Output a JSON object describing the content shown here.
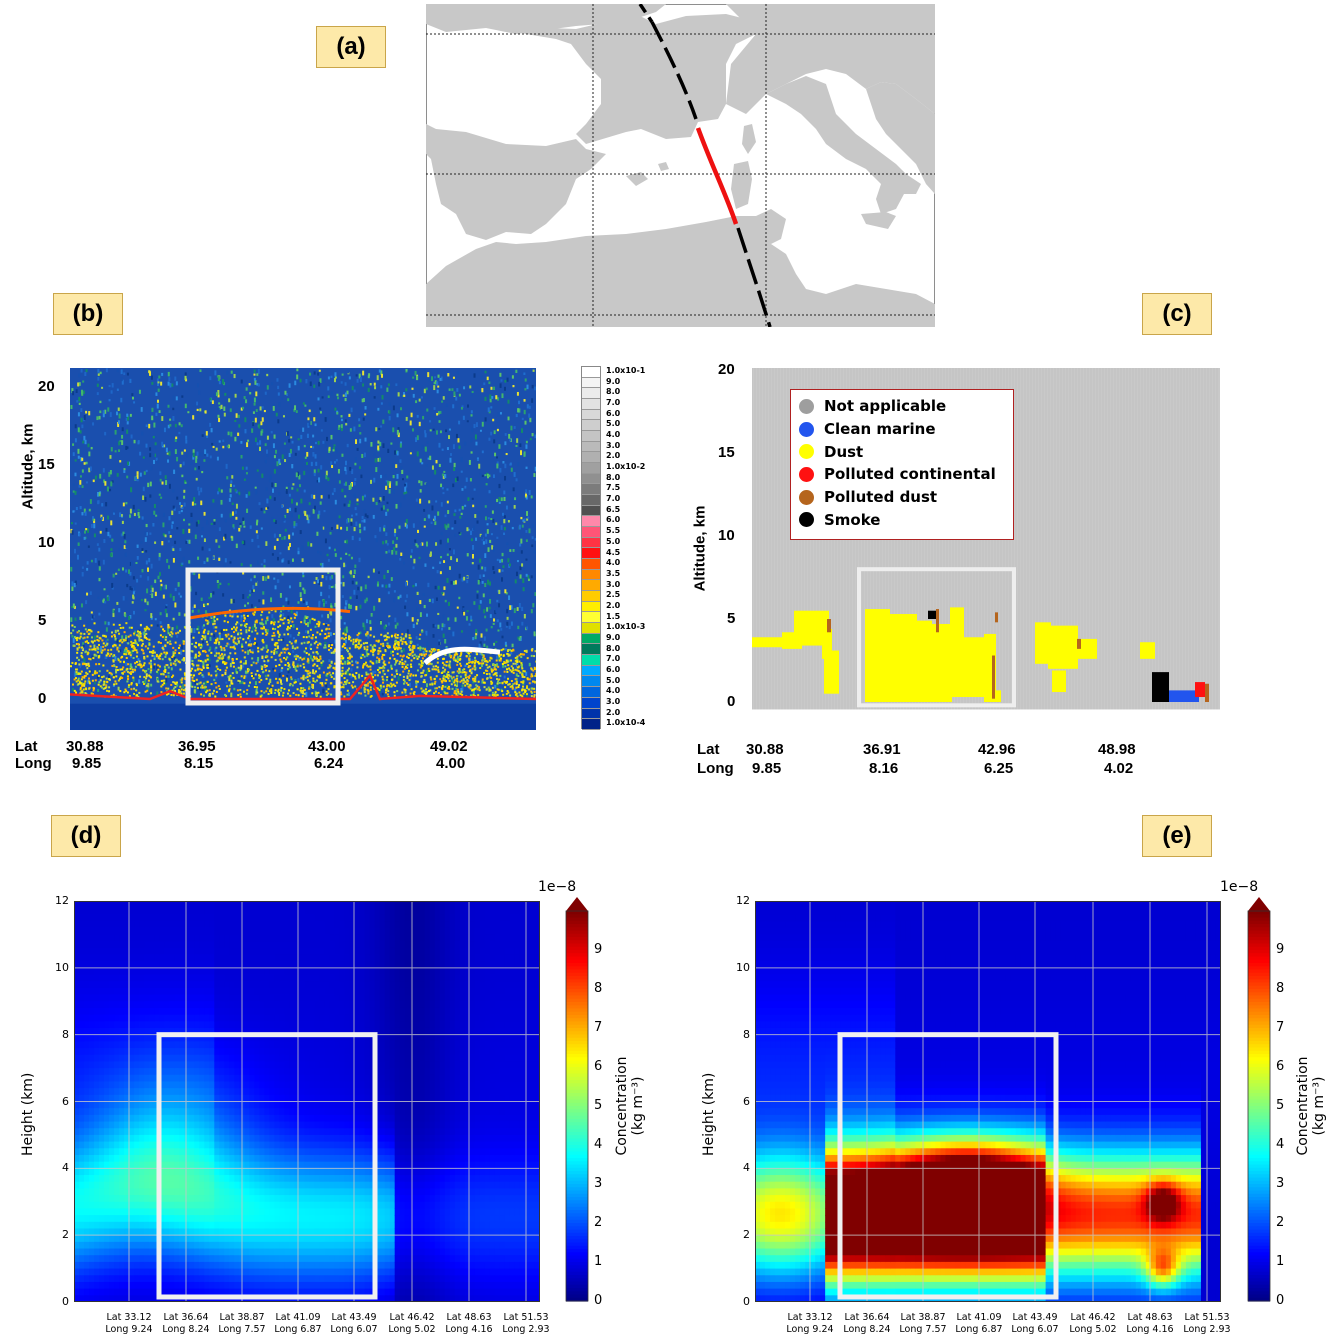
{
  "panels": {
    "a": "(a)",
    "b": "(b)",
    "c": "(c)",
    "d": "(d)",
    "e": "(e)"
  },
  "colors": {
    "label_bg": "#fde9a9",
    "land": "#c8c8c8",
    "track_black": "#000000",
    "track_red": "#ee1111",
    "box": "#f0f0f0",
    "legend_border": "#b02020"
  },
  "panel_b": {
    "ylabel": "Altitude, km",
    "yticks": [
      "20",
      "15",
      "10",
      "5",
      "0"
    ],
    "lat_label": "Lat",
    "long_label": "Long",
    "lats": [
      "30.88",
      "36.95",
      "43.00",
      "49.02"
    ],
    "longs": [
      "9.85",
      "8.15",
      "6.24",
      "4.00"
    ],
    "colorbar_labels": [
      "1.0x10-1",
      "9.0",
      "8.0",
      "7.0",
      "6.0",
      "5.0",
      "4.0",
      "3.0",
      "2.0",
      "1.0x10-2",
      "8.0",
      "7.5",
      "7.0",
      "6.5",
      "6.0",
      "5.5",
      "5.0",
      "4.5",
      "4.0",
      "3.5",
      "3.0",
      "2.5",
      "2.0",
      "1.5",
      "1.0x10-3",
      "9.0",
      "8.0",
      "7.0",
      "6.0",
      "5.0",
      "4.0",
      "3.0",
      "2.0",
      "1.0x10-4"
    ],
    "colorbar_colors": [
      "#ffffff",
      "#f4f4f4",
      "#ebebeb",
      "#e2e2e2",
      "#d8d8d8",
      "#cecece",
      "#c4c4c4",
      "#bababa",
      "#b0b0b0",
      "#a0a0a0",
      "#909090",
      "#7c7c7c",
      "#686868",
      "#505050",
      "#ff88aa",
      "#ff5577",
      "#ff3344",
      "#ff1111",
      "#ff5500",
      "#ff8800",
      "#ffaa00",
      "#ffcc00",
      "#ffee00",
      "#ffff33",
      "#e0e000",
      "#00aa66",
      "#007a5c",
      "#00ddaa",
      "#00aaff",
      "#0088ee",
      "#0066dd",
      "#0044cc",
      "#0033aa",
      "#002288"
    ]
  },
  "panel_c": {
    "ylabel": "Altitude, km",
    "yticks": [
      "20",
      "15",
      "10",
      "5",
      "0"
    ],
    "lat_label": "Lat",
    "long_label": "Long",
    "lats": [
      "30.88",
      "36.91",
      "42.96",
      "48.98"
    ],
    "longs": [
      "9.85",
      "8.16",
      "6.25",
      "4.02"
    ],
    "legend": [
      {
        "label": "Not applicable",
        "color": "#9e9e9e"
      },
      {
        "label": "Clean marine",
        "color": "#2255ee"
      },
      {
        "label": "Dust",
        "color": "#ffff00"
      },
      {
        "label": "Polluted continental",
        "color": "#ff1111"
      },
      {
        "label": "Polluted dust",
        "color": "#b5651d"
      },
      {
        "label": "Smoke",
        "color": "#000000"
      }
    ]
  },
  "panel_d": {
    "ylabel": "Height (km)",
    "yticks": [
      "12",
      "10",
      "8",
      "6",
      "4",
      "2",
      "0"
    ],
    "xticks_lat": [
      "Lat 33.12",
      "Lat 36.64",
      "Lat 38.87",
      "Lat 41.09",
      "Lat 43.49",
      "Lat 46.42",
      "Lat 48.63",
      "Lat 51.53"
    ],
    "xticks_long": [
      "Long 9.24",
      "Long 8.24",
      "Long 7.57",
      "Long 6.87",
      "Long 6.07",
      "Long 5.02",
      "Long 4.16",
      "Long 2.93"
    ],
    "cbar_ticks": [
      "9",
      "8",
      "7",
      "6",
      "5",
      "4",
      "3",
      "2",
      "1",
      "0"
    ],
    "cbar_exp": "1e−8",
    "cbar_label": "Concentration",
    "cbar_unit": "(kg m⁻³)"
  },
  "panel_e": {
    "ylabel": "Height (km)",
    "yticks": [
      "12",
      "10",
      "8",
      "6",
      "4",
      "2",
      "0"
    ],
    "xticks_lat": [
      "Lat 33.12",
      "Lat 36.64",
      "Lat 38.87",
      "Lat 41.09",
      "Lat 43.49",
      "Lat 46.42",
      "Lat 48.63",
      "Lat 51.53"
    ],
    "xticks_long": [
      "Long 9.24",
      "Long 8.24",
      "Long 7.57",
      "Long 6.87",
      "Long 6.07",
      "Long 5.02",
      "Long 4.16",
      "Long 2.93"
    ],
    "cbar_ticks": [
      "9",
      "8",
      "7",
      "6",
      "5",
      "4",
      "3",
      "2",
      "1",
      "0"
    ],
    "cbar_exp": "1e−8",
    "cbar_label": "Concentration",
    "cbar_unit": "(kg m⁻³)"
  },
  "chart_data": [
    {
      "type": "map",
      "description_source": "panel a",
      "track_highlight": "red"
    },
    {
      "type": "heatmap",
      "panel": "b",
      "ylabel": "Altitude, km",
      "ylim": [
        -2,
        21
      ],
      "xticks": [
        {
          "lat": 30.88,
          "long": 9.85
        },
        {
          "lat": 36.95,
          "long": 8.15
        },
        {
          "lat": 43.0,
          "long": 6.24
        },
        {
          "lat": 49.02,
          "long": 4.0
        }
      ]
    },
    {
      "type": "heatmap",
      "panel": "c",
      "ylabel": "Altitude, km",
      "ylim": [
        -0.5,
        20
      ],
      "categories": [
        "Not applicable",
        "Clean marine",
        "Dust",
        "Polluted continental",
        "Polluted dust",
        "Smoke"
      ],
      "xticks": [
        {
          "lat": 30.88,
          "long": 9.85
        },
        {
          "lat": 36.91,
          "long": 8.16
        },
        {
          "lat": 42.96,
          "long": 6.25
        },
        {
          "lat": 48.98,
          "long": 4.02
        }
      ]
    },
    {
      "type": "heatmap",
      "panel": "d",
      "ylabel": "Height (km)",
      "ylim": [
        0,
        12
      ],
      "cbar_range": [
        0,
        1e-07
      ]
    },
    {
      "type": "heatmap",
      "panel": "e",
      "ylabel": "Height (km)",
      "ylim": [
        0,
        12
      ],
      "cbar_range": [
        0,
        1e-07
      ]
    }
  ]
}
